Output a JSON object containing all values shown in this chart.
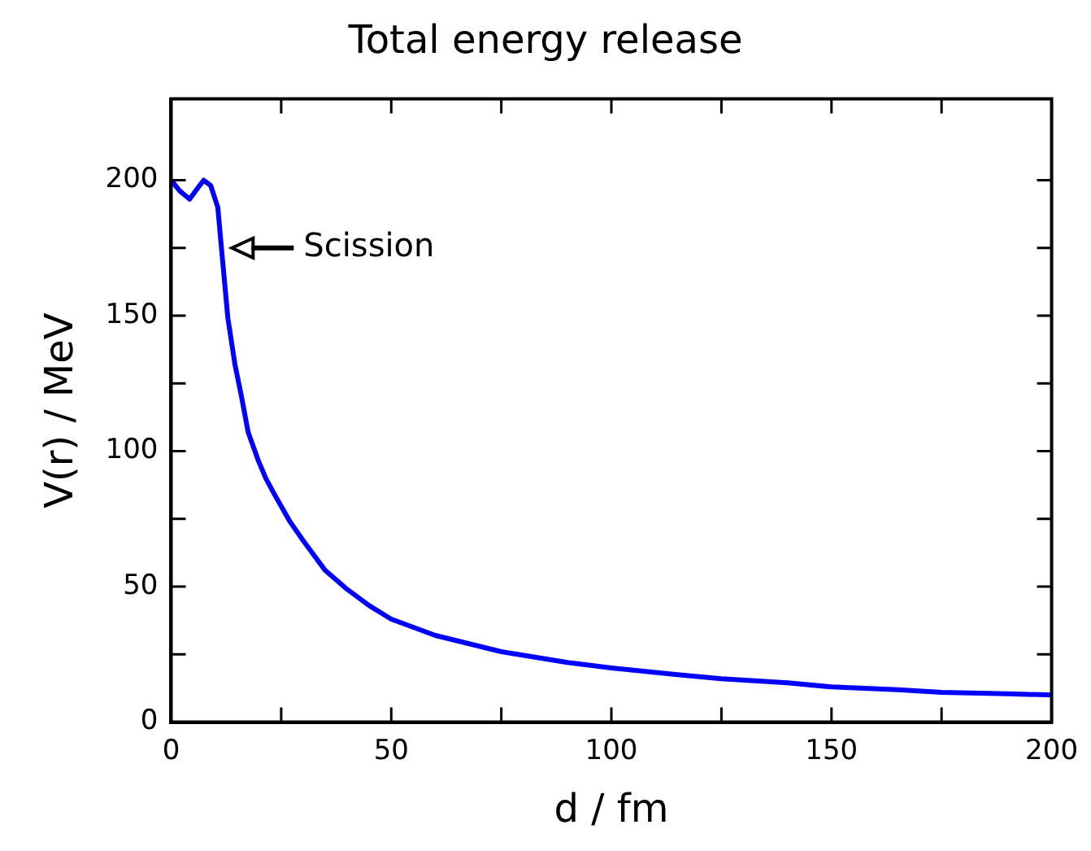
{
  "chart_data": {
    "type": "line",
    "title": "Total energy release",
    "xlabel": "d / fm",
    "ylabel": "V(r) / MeV",
    "x": [
      0,
      2,
      4.2,
      6,
      7.4,
      9,
      10.6,
      11.6,
      12.9,
      14.5,
      16,
      17.5,
      19.7,
      21.5,
      23.5,
      27,
      30,
      35,
      40,
      45,
      50,
      60,
      75,
      90,
      100,
      115,
      125,
      140,
      150,
      165,
      175,
      190,
      200
    ],
    "series": [
      {
        "color": "#0000ff",
        "values": [
          200,
          196,
          193,
          197,
          200,
          198,
          190,
          172,
          149,
          132,
          120,
          107,
          97,
          90,
          84,
          74,
          67,
          56,
          49,
          43,
          38,
          32,
          26,
          22,
          20,
          17.5,
          16,
          14.5,
          13,
          12,
          11,
          10.5,
          10
        ]
      }
    ],
    "xlim": [
      0,
      200
    ],
    "ylim": [
      0,
      230
    ],
    "xticks": [
      0,
      {
        "value": 25,
        "label": null
      },
      50,
      {
        "value": 75,
        "label": null
      },
      100,
      {
        "value": 125,
        "label": null
      },
      150,
      {
        "value": 175,
        "label": null
      },
      200
    ],
    "yticks": [
      0,
      {
        "value": 25,
        "label": null
      },
      50,
      {
        "value": 75,
        "label": null
      },
      100,
      {
        "value": 125,
        "label": null
      },
      150,
      {
        "value": 175,
        "label": null
      },
      200
    ],
    "grid": false,
    "legend": false,
    "marker": "none",
    "line_style": "solid",
    "annotations": [
      {
        "text": "Scission",
        "x": 11.6,
        "y": 175
      }
    ]
  }
}
